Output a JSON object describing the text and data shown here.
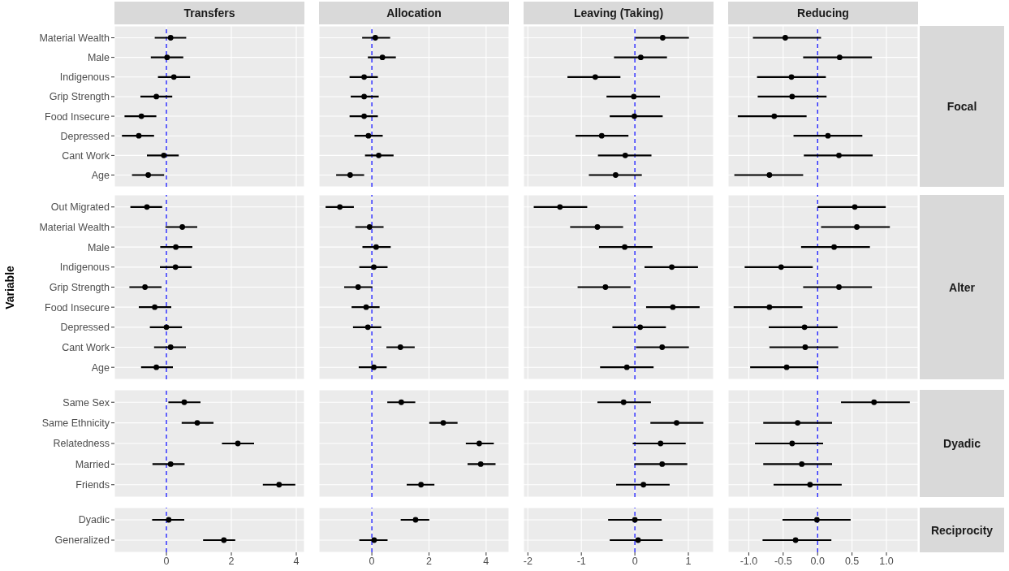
{
  "chart_data": [
    {
      "type": "scatter",
      "orientation": "horizontal",
      "title": "Transfers",
      "categories": [
        "Material Wealth",
        "Male",
        "Indigenous",
        "Grip Strength",
        "Food Insecure",
        "Depressed",
        "Cant Work",
        "Age"
      ],
      "values": [
        0.13,
        0.02,
        0.23,
        -0.31,
        -0.77,
        -0.85,
        -0.08,
        -0.56
      ],
      "errors": [
        [
          -0.36,
          0.61
        ],
        [
          -0.48,
          0.52
        ],
        [
          -0.26,
          0.73
        ],
        [
          -0.8,
          0.18
        ],
        [
          -1.29,
          -0.31
        ],
        [
          -1.37,
          -0.38
        ],
        [
          -0.6,
          0.38
        ],
        [
          -1.06,
          -0.07
        ]
      ],
      "color": "#000000",
      "marker": "circle",
      "grid": true,
      "xlim": [
        -1.6,
        4.25
      ],
      "xticks": [
        0,
        2,
        4
      ],
      "tick_labels": "y",
      "ref_lines": [
        {
          "axis": "x",
          "value": 0,
          "color": "#0000ff",
          "line_style": "dashed"
        }
      ]
    },
    {
      "type": "scatter",
      "orientation": "horizontal",
      "title": "Allocation",
      "categories": [
        null,
        null,
        null,
        null,
        null,
        null,
        null,
        null
      ],
      "values": [
        0.12,
        0.37,
        -0.27,
        -0.27,
        -0.27,
        -0.12,
        0.24,
        -0.76
      ],
      "errors": [
        [
          -0.34,
          0.64
        ],
        [
          -0.14,
          0.84
        ],
        [
          -0.78,
          0.21
        ],
        [
          -0.74,
          0.24
        ],
        [
          -0.78,
          0.21
        ],
        [
          -0.61,
          0.38
        ],
        [
          -0.24,
          0.76
        ],
        [
          -1.25,
          -0.27
        ]
      ],
      "color": "#000000",
      "marker": "circle",
      "grid": true,
      "xlim": [
        -1.85,
        4.8
      ],
      "xticks": [
        0,
        2,
        4
      ],
      "tick_labels": false,
      "ref_lines": [
        {
          "axis": "x",
          "value": 0,
          "color": "#0000ff",
          "line_style": "dashed"
        }
      ]
    },
    {
      "type": "scatter",
      "orientation": "horizontal",
      "title": "Leaving (Taking)",
      "categories": [
        null,
        null,
        null,
        null,
        null,
        null,
        null,
        null
      ],
      "values": [
        0.52,
        0.11,
        -0.74,
        -0.02,
        -0.01,
        -0.62,
        -0.18,
        -0.36
      ],
      "errors": [
        [
          0.01,
          1.01
        ],
        [
          -0.39,
          0.6
        ],
        [
          -1.26,
          -0.27
        ],
        [
          -0.53,
          0.47
        ],
        [
          -0.47,
          0.52
        ],
        [
          -1.11,
          -0.12
        ],
        [
          -0.69,
          0.31
        ],
        [
          -0.86,
          0.13
        ]
      ],
      "color": "#000000",
      "marker": "circle",
      "grid": true,
      "xlim": [
        -2.08,
        1.47
      ],
      "xticks": [
        -2,
        -1,
        0,
        1
      ],
      "tick_labels": false,
      "ref_lines": [
        {
          "axis": "x",
          "value": 0,
          "color": "#0000ff",
          "line_style": "dashed"
        }
      ]
    },
    {
      "type": "scatter",
      "orientation": "horizontal",
      "title": "Reducing",
      "y2label": "Focal",
      "categories": [
        null,
        null,
        null,
        null,
        null,
        null,
        null,
        null
      ],
      "values": [
        -0.47,
        0.32,
        -0.38,
        -0.37,
        -0.63,
        0.15,
        0.31,
        -0.7
      ],
      "errors": [
        [
          -0.94,
          0.05
        ],
        [
          -0.21,
          0.79
        ],
        [
          -0.88,
          0.12
        ],
        [
          -0.87,
          0.13
        ],
        [
          -1.16,
          -0.16
        ],
        [
          -0.35,
          0.65
        ],
        [
          -0.2,
          0.8
        ],
        [
          -1.21,
          -0.21
        ]
      ],
      "color": "#000000",
      "marker": "circle",
      "grid": true,
      "xlim": [
        -1.3,
        1.46
      ],
      "xticks": [
        -1,
        -0.5,
        0,
        0.5,
        1
      ],
      "tick_labels": false,
      "ref_lines": [
        {
          "axis": "x",
          "value": 0,
          "color": "#0000ff",
          "line_style": "dashed"
        }
      ]
    },
    {
      "type": "scatter",
      "orientation": "horizontal",
      "ylabel": "Variable",
      "categories": [
        "Out Migrated",
        "Material Wealth",
        "Male",
        "Indigenous",
        "Grip Strength",
        "Food Insecure",
        "Depressed",
        "Cant Work",
        "Age"
      ],
      "values": [
        -0.6,
        0.49,
        0.29,
        0.28,
        -0.66,
        -0.36,
        0,
        0.13,
        -0.31
      ],
      "errors": [
        [
          -1.11,
          -0.13
        ],
        [
          -0.03,
          0.95
        ],
        [
          -0.19,
          0.8
        ],
        [
          -0.2,
          0.78
        ],
        [
          -1.14,
          -0.15
        ],
        [
          -0.85,
          0.15
        ],
        [
          -0.51,
          0.48
        ],
        [
          -0.38,
          0.6
        ],
        [
          -0.78,
          0.2
        ]
      ],
      "color": "#000000",
      "marker": "circle",
      "grid": true,
      "xlim": [
        -1.6,
        4.25
      ],
      "xticks": [
        0,
        2,
        4
      ],
      "tick_labels": "y",
      "ref_lines": [
        {
          "axis": "x",
          "value": 0,
          "color": "#0000ff",
          "line_style": "dashed"
        }
      ]
    },
    {
      "type": "scatter",
      "orientation": "horizontal",
      "categories": [
        null,
        null,
        null,
        null,
        null,
        null,
        null,
        null,
        null
      ],
      "values": [
        -1.12,
        -0.08,
        0.15,
        0.07,
        -0.48,
        -0.2,
        -0.14,
        1,
        0.07
      ],
      "errors": [
        [
          -1.62,
          -0.63
        ],
        [
          -0.58,
          0.41
        ],
        [
          -0.33,
          0.66
        ],
        [
          -0.44,
          0.55
        ],
        [
          -0.97,
          0.02
        ],
        [
          -0.71,
          0.27
        ],
        [
          -0.66,
          0.33
        ],
        [
          0.51,
          1.5
        ],
        [
          -0.46,
          0.52
        ]
      ],
      "color": "#000000",
      "marker": "circle",
      "grid": true,
      "xlim": [
        -1.85,
        4.8
      ],
      "xticks": [
        0,
        2,
        4
      ],
      "tick_labels": false,
      "ref_lines": [
        {
          "axis": "x",
          "value": 0,
          "color": "#0000ff",
          "line_style": "dashed"
        }
      ]
    },
    {
      "type": "scatter",
      "orientation": "horizontal",
      "categories": [
        null,
        null,
        null,
        null,
        null,
        null,
        null,
        null,
        null
      ],
      "values": [
        -1.4,
        -0.7,
        -0.19,
        0.69,
        -0.55,
        0.71,
        0.1,
        0.51,
        -0.15
      ],
      "errors": [
        [
          -1.89,
          -0.89
        ],
        [
          -1.21,
          -0.22
        ],
        [
          -0.67,
          0.33
        ],
        [
          0.18,
          1.18
        ],
        [
          -1.07,
          -0.08
        ],
        [
          0.21,
          1.21
        ],
        [
          -0.42,
          0.58
        ],
        [
          0.02,
          1.01
        ],
        [
          -0.65,
          0.35
        ]
      ],
      "color": "#000000",
      "marker": "circle",
      "grid": true,
      "xlim": [
        -2.08,
        1.47
      ],
      "xticks": [
        -2,
        -1,
        0,
        1
      ],
      "tick_labels": false,
      "ref_lines": [
        {
          "axis": "x",
          "value": 0,
          "color": "#0000ff",
          "line_style": "dashed"
        }
      ]
    },
    {
      "type": "scatter",
      "orientation": "horizontal",
      "y2label": "Alter",
      "categories": [
        null,
        null,
        null,
        null,
        null,
        null,
        null,
        null,
        null
      ],
      "values": [
        0.54,
        0.57,
        0.24,
        -0.53,
        0.31,
        -0.7,
        -0.19,
        -0.18,
        -0.45
      ],
      "errors": [
        [
          0,
          0.99
        ],
        [
          0.05,
          1.05
        ],
        [
          -0.24,
          0.76
        ],
        [
          -1.06,
          -0.07
        ],
        [
          -0.21,
          0.79
        ],
        [
          -1.22,
          -0.22
        ],
        [
          -0.71,
          0.29
        ],
        [
          -0.7,
          0.3
        ],
        [
          -0.98,
          0.01
        ]
      ],
      "color": "#000000",
      "marker": "circle",
      "grid": true,
      "xlim": [
        -1.3,
        1.46
      ],
      "xticks": [
        -1,
        -0.5,
        0,
        0.5,
        1
      ],
      "tick_labels": false,
      "ref_lines": [
        {
          "axis": "x",
          "value": 0,
          "color": "#0000ff",
          "line_style": "dashed"
        }
      ]
    },
    {
      "type": "scatter",
      "orientation": "horizontal",
      "categories": [
        "Same Sex",
        "Same Ethnicity",
        "Relatedness",
        "Married",
        "Friends"
      ],
      "values": [
        0.55,
        0.95,
        2.2,
        0.13,
        3.47
      ],
      "errors": [
        [
          0.06,
          1.05
        ],
        [
          0.47,
          1.45
        ],
        [
          1.71,
          2.7
        ],
        [
          -0.43,
          0.56
        ],
        [
          2.97,
          3.97
        ]
      ],
      "color": "#000000",
      "marker": "circle",
      "grid": true,
      "xlim": [
        -1.6,
        4.25
      ],
      "xticks": [
        0,
        2,
        4
      ],
      "tick_labels": "y",
      "ref_lines": [
        {
          "axis": "x",
          "value": 0,
          "color": "#0000ff",
          "line_style": "dashed"
        }
      ]
    },
    {
      "type": "scatter",
      "orientation": "horizontal",
      "categories": [
        null,
        null,
        null,
        null,
        null
      ],
      "values": [
        1.03,
        2.5,
        3.76,
        3.81,
        1.72
      ],
      "errors": [
        [
          0.54,
          1.52
        ],
        [
          2.01,
          3
        ],
        [
          3.29,
          4.27
        ],
        [
          3.35,
          4.33
        ],
        [
          1.22,
          2.19
        ]
      ],
      "color": "#000000",
      "marker": "circle",
      "grid": true,
      "xlim": [
        -1.85,
        4.8
      ],
      "xticks": [
        0,
        2,
        4
      ],
      "tick_labels": false,
      "ref_lines": [
        {
          "axis": "x",
          "value": 0,
          "color": "#0000ff",
          "line_style": "dashed"
        }
      ]
    },
    {
      "type": "scatter",
      "orientation": "horizontal",
      "categories": [
        null,
        null,
        null,
        null,
        null
      ],
      "values": [
        -0.21,
        0.78,
        0.48,
        0.51,
        0.16
      ],
      "errors": [
        [
          -0.7,
          0.3
        ],
        [
          0.29,
          1.28
        ],
        [
          -0.04,
          0.95
        ],
        [
          -0.01,
          0.98
        ],
        [
          -0.35,
          0.65
        ]
      ],
      "color": "#000000",
      "marker": "circle",
      "grid": true,
      "xlim": [
        -2.08,
        1.47
      ],
      "xticks": [
        -2,
        -1,
        0,
        1
      ],
      "tick_labels": false,
      "ref_lines": [
        {
          "axis": "x",
          "value": 0,
          "color": "#0000ff",
          "line_style": "dashed"
        }
      ]
    },
    {
      "type": "scatter",
      "orientation": "horizontal",
      "y2label": "Dyadic",
      "categories": [
        null,
        null,
        null,
        null,
        null
      ],
      "values": [
        0.82,
        -0.29,
        -0.37,
        -0.23,
        -0.11
      ],
      "errors": [
        [
          0.34,
          1.34
        ],
        [
          -0.79,
          0.21
        ],
        [
          -0.91,
          0.08
        ],
        [
          -0.79,
          0.21
        ],
        [
          -0.64,
          0.35
        ]
      ],
      "color": "#000000",
      "marker": "circle",
      "grid": true,
      "xlim": [
        -1.3,
        1.46
      ],
      "xticks": [
        -1,
        -0.5,
        0,
        0.5,
        1
      ],
      "tick_labels": false,
      "ref_lines": [
        {
          "axis": "x",
          "value": 0,
          "color": "#0000ff",
          "line_style": "dashed"
        }
      ]
    },
    {
      "type": "scatter",
      "orientation": "horizontal",
      "categories": [
        "Dyadic",
        "Generalized"
      ],
      "values": [
        0.07,
        1.77
      ],
      "errors": [
        [
          -0.44,
          0.55
        ],
        [
          1.13,
          2.12
        ]
      ],
      "color": "#000000",
      "marker": "circle",
      "grid": true,
      "xlim": [
        -1.6,
        4.25
      ],
      "xticks": [
        0,
        2,
        4
      ],
      "ref_lines": [
        {
          "axis": "x",
          "value": 0,
          "color": "#0000ff",
          "line_style": "dashed"
        }
      ]
    },
    {
      "type": "scatter",
      "orientation": "horizontal",
      "categories": [
        null,
        null
      ],
      "values": [
        1.53,
        0.08
      ],
      "errors": [
        [
          1.01,
          2.01
        ],
        [
          -0.44,
          0.55
        ]
      ],
      "color": "#000000",
      "marker": "circle",
      "grid": true,
      "xlim": [
        -1.85,
        4.8
      ],
      "xticks": [
        0,
        2,
        4
      ],
      "tick_labels": "x",
      "ref_lines": [
        {
          "axis": "x",
          "value": 0,
          "color": "#0000ff",
          "line_style": "dashed"
        }
      ]
    },
    {
      "type": "scatter",
      "orientation": "horizontal",
      "categories": [
        null,
        null
      ],
      "values": [
        0,
        0.06
      ],
      "errors": [
        [
          -0.5,
          0.5
        ],
        [
          -0.47,
          0.52
        ]
      ],
      "color": "#000000",
      "marker": "circle",
      "grid": true,
      "xlim": [
        -2.08,
        1.47
      ],
      "xticks": [
        -2,
        -1,
        0,
        1
      ],
      "tick_labels": "x",
      "ref_lines": [
        {
          "axis": "x",
          "value": 0,
          "color": "#0000ff",
          "line_style": "dashed"
        }
      ]
    },
    {
      "type": "scatter",
      "orientation": "horizontal",
      "y2label": "Reciprocity",
      "categories": [
        null,
        null
      ],
      "values": [
        -0.01,
        -0.32
      ],
      "errors": [
        [
          -0.51,
          0.48
        ],
        [
          -0.8,
          0.2
        ]
      ],
      "color": "#000000",
      "marker": "circle",
      "grid": true,
      "xlim": [
        -1.3,
        1.46
      ],
      "xticks": [
        {
          "value": -1,
          "label": "-1.0"
        },
        {
          "value": -0.5,
          "label": "-0.5"
        },
        {
          "value": 0,
          "label": "0.0"
        },
        0.5,
        {
          "value": 1,
          "label": "1.0"
        }
      ],
      "tick_labels": "x",
      "ref_lines": [
        {
          "axis": "x",
          "value": 0,
          "color": "#0000ff",
          "line_style": "dashed"
        }
      ]
    }
  ]
}
